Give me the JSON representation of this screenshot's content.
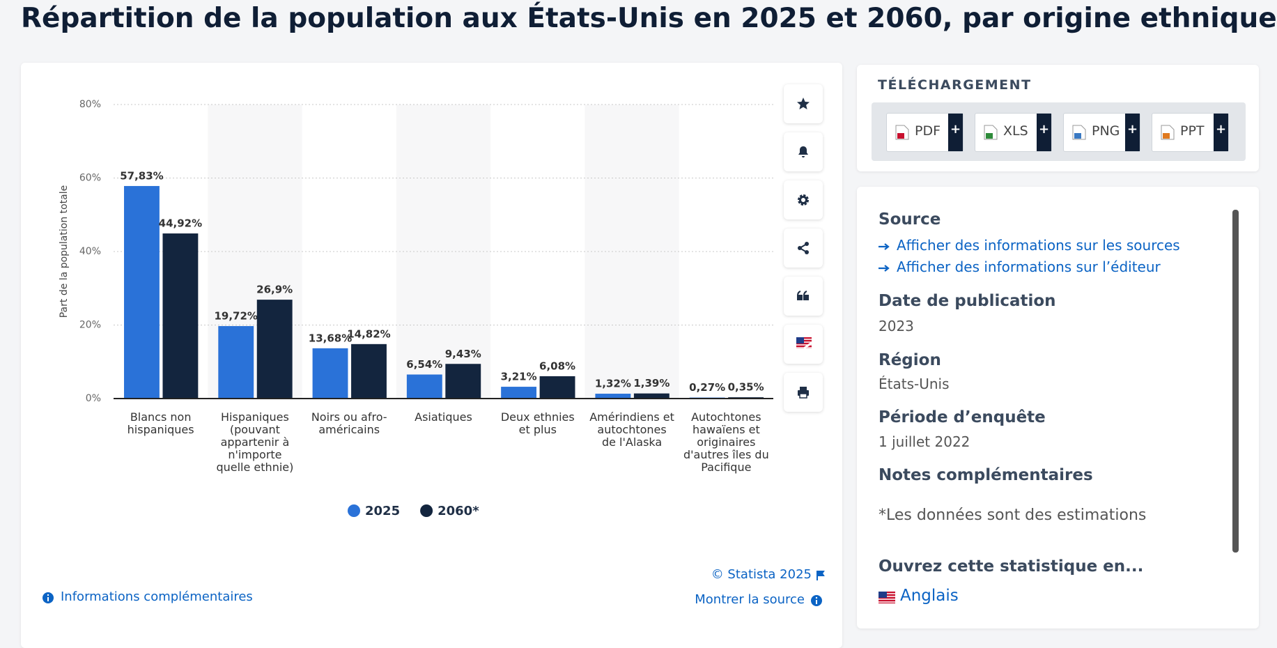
{
  "title": "Répartition de la population aux États-Unis en 2025 et 2060, par origine ethnique",
  "chart_data": {
    "type": "bar",
    "y_label": "Part de la population totale",
    "categories": [
      "Blancs non hispaniques",
      "Hispaniques (pouvant appartenir à n'importe quelle ethnie)",
      "Noirs ou afro-américains",
      "Asiatiques",
      "Deux ethnies et plus",
      "Amérindiens et autochtones de l'Alaska",
      "Autochtones hawaïens et originaires d'autres îles du Pacifique"
    ],
    "series": [
      {
        "name": "2025",
        "color": "#2a72d8",
        "values": [
          57.83,
          19.72,
          13.68,
          6.54,
          3.21,
          1.32,
          0.27
        ],
        "value_labels": [
          "57,83%",
          "19,72%",
          "13,68%",
          "6,54%",
          "3,21%",
          "1,32%",
          "0,27%"
        ]
      },
      {
        "name": "2060*",
        "color": "#13253e",
        "values": [
          44.92,
          26.9,
          14.82,
          9.43,
          6.08,
          1.39,
          0.35
        ],
        "value_labels": [
          "44,92%",
          "26,9%",
          "14,82%",
          "9,43%",
          "6,08%",
          "1,39%",
          "0,35%"
        ]
      }
    ],
    "ylim": [
      0,
      80
    ],
    "yticks": [
      {
        "value": 0,
        "label": "0%"
      },
      {
        "value": 20,
        "label": "20%"
      },
      {
        "value": 40,
        "label": "40%"
      },
      {
        "value": 60,
        "label": "60%"
      },
      {
        "value": 80,
        "label": "80%"
      }
    ],
    "grid": true
  },
  "footer": {
    "copyright": "© Statista 2025",
    "info": "Informations complémentaires",
    "source": "Montrer la source"
  },
  "download": {
    "heading": "TÉLÉCHARGEMENT",
    "buttons": [
      {
        "label": "PDF",
        "more": "+"
      },
      {
        "label": "XLS",
        "more": "+"
      },
      {
        "label": "PNG",
        "more": "+"
      },
      {
        "label": "PPT",
        "more": "+"
      }
    ]
  },
  "details": {
    "source_heading": "Source",
    "links": [
      "Afficher des informations sur les sources",
      "Afficher des informations sur l’éditeur"
    ],
    "date_heading": "Date de publication",
    "date": "2023",
    "region_heading": "Région",
    "region": "États-Unis",
    "period_heading": "Période d’enquête",
    "period": "1 juillet 2022",
    "notes_heading": "Notes complémentaires",
    "notes": "*Les données sont des estimations",
    "open_heading": "Ouvrez cette statistique en...",
    "open_language": "Anglais"
  }
}
